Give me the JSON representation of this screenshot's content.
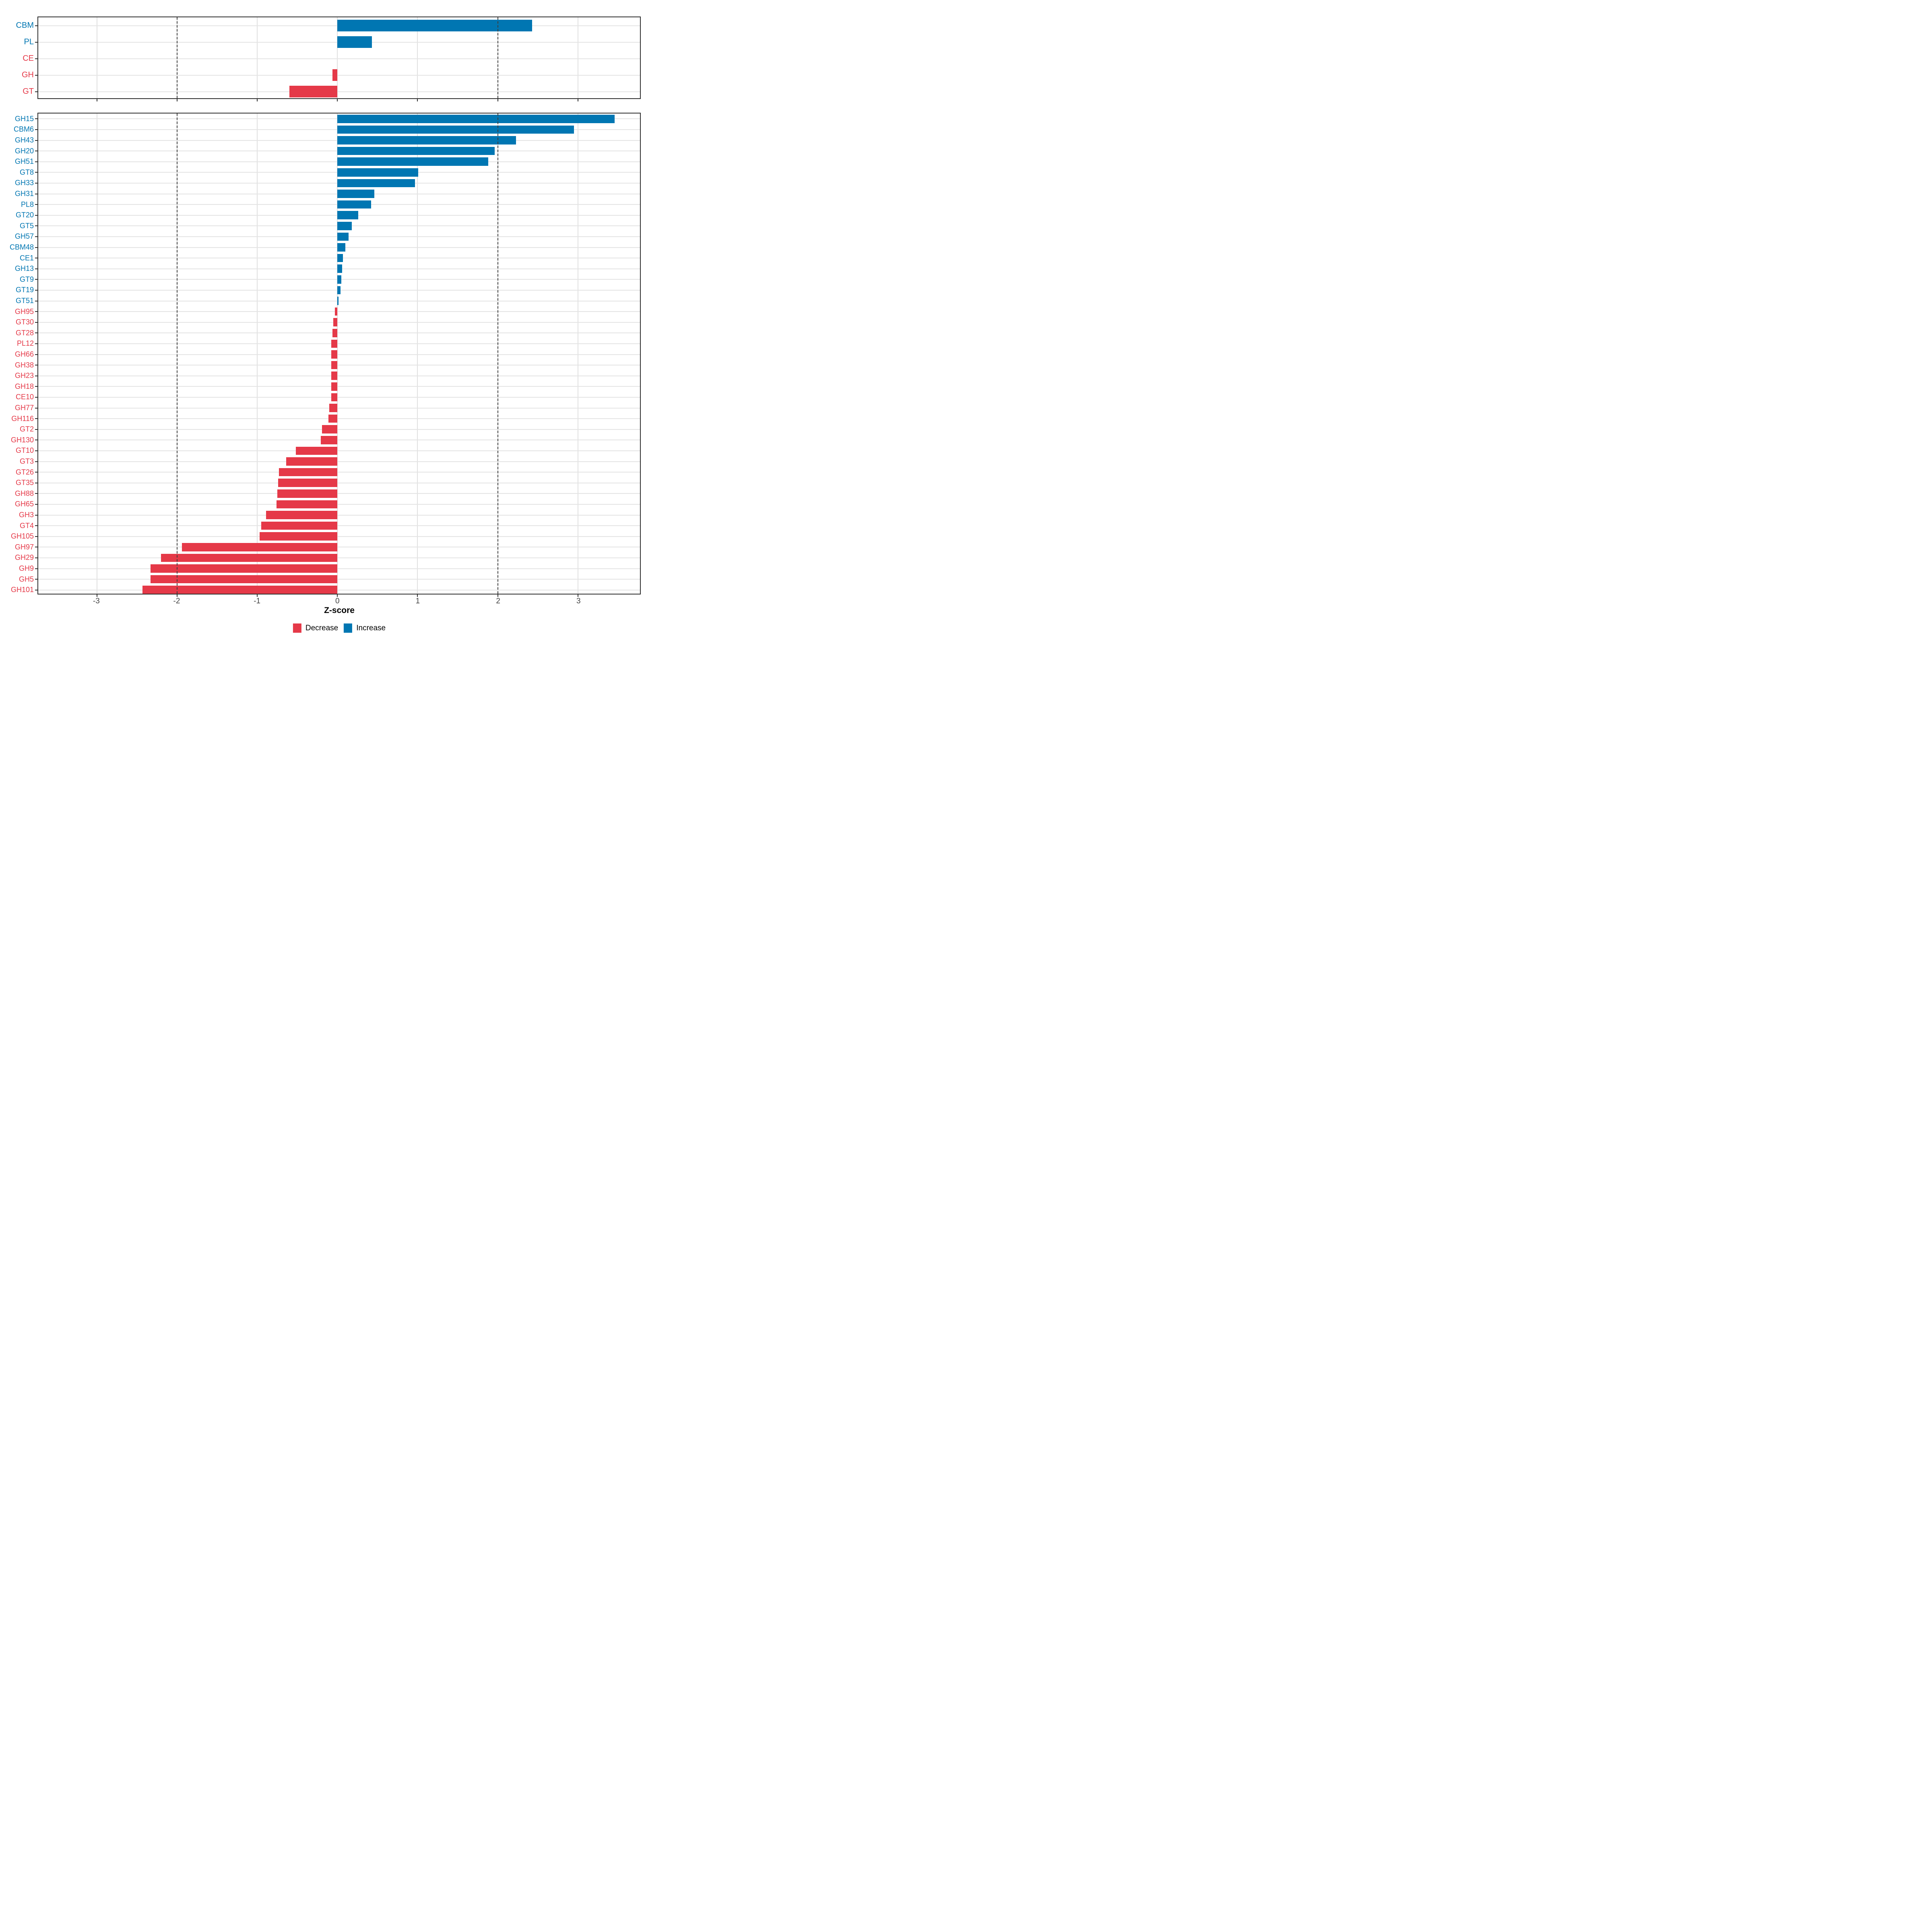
{
  "figure": {
    "xlabel": "Z-score",
    "x_tick_labels": [
      "-3",
      "-2",
      "-1",
      "0",
      "1",
      "2",
      "3"
    ],
    "colors": {
      "increase": "#0076B2",
      "decrease": "#E53948",
      "gridline": "#e0e0e0",
      "dashed_line": "#3f3f3f",
      "axis_text": "#444444",
      "panel_border": "#2f2f2f"
    },
    "legend": [
      {
        "label": "Decrease",
        "color": "#E53948"
      },
      {
        "label": "Increase",
        "color": "#0076B2"
      }
    ]
  },
  "chart_data": [
    {
      "type": "bar",
      "orientation": "horizontal",
      "panel": "cazyme-class",
      "title": "",
      "xlabel": "Z-score",
      "xlim": [
        -3.733,
        3.775
      ],
      "x_ticks": [
        -3,
        -2,
        -1,
        0,
        1,
        2,
        3
      ],
      "dashed_reference_lines": [
        -2,
        2
      ],
      "grid": true,
      "categories": [
        "CBM",
        "PL",
        "CE",
        "GH",
        "GT"
      ],
      "values": [
        2.43,
        0.43,
        0.0,
        -0.06,
        -0.6
      ]
    },
    {
      "type": "bar",
      "orientation": "horizontal",
      "panel": "cazyme-family",
      "title": "",
      "xlabel": "Z-score",
      "xlim": [
        -3.733,
        3.775
      ],
      "x_ticks": [
        -3,
        -2,
        -1,
        0,
        1,
        2,
        3
      ],
      "dashed_reference_lines": [
        -2,
        2
      ],
      "grid": true,
      "categories": [
        "GH15",
        "CBM6",
        "GH43",
        "GH20",
        "GH51",
        "GT8",
        "GH33",
        "GH31",
        "PL8",
        "GT20",
        "GT5",
        "GH57",
        "CBM48",
        "CE1",
        "GH13",
        "GT9",
        "GT19",
        "GT51",
        "GH95",
        "GT30",
        "GT28",
        "PL12",
        "GH66",
        "GH38",
        "GH23",
        "GH18",
        "CE10",
        "GH77",
        "GH116",
        "GT2",
        "GH130",
        "GT10",
        "GT3",
        "GT26",
        "GT35",
        "GH88",
        "GH65",
        "GH3",
        "GT4",
        "GH105",
        "GH97",
        "GH29",
        "GH9",
        "GH5",
        "GH101"
      ],
      "values": [
        3.46,
        2.95,
        2.23,
        1.96,
        1.88,
        1.01,
        0.97,
        0.46,
        0.42,
        0.26,
        0.18,
        0.14,
        0.1,
        0.07,
        0.06,
        0.05,
        0.04,
        0.012,
        -0.03,
        -0.05,
        -0.06,
        -0.075,
        -0.075,
        -0.076,
        -0.076,
        -0.077,
        -0.077,
        -0.1,
        -0.11,
        -0.19,
        -0.21,
        -0.52,
        -0.64,
        -0.73,
        -0.74,
        -0.75,
        -0.76,
        -0.89,
        -0.95,
        -0.97,
        -1.94,
        -2.2,
        -2.33,
        -2.33,
        -2.43
      ]
    }
  ]
}
